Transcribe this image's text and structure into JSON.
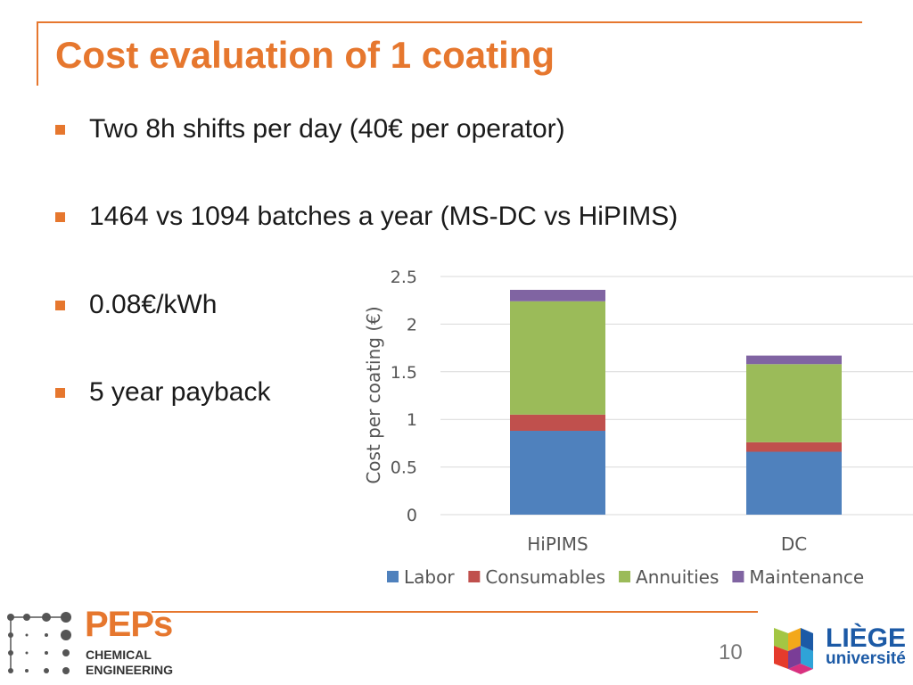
{
  "slide": {
    "title": "Cost evaluation of 1 coating",
    "bullets": [
      "Two 8h shifts per day (40€ per operator)",
      "1464 vs 1094 batches a year (MS-DC vs HiPIMS)",
      "0.08€/kWh",
      "5 year payback"
    ],
    "page_number": "10"
  },
  "footer": {
    "peps_name": "PEPs",
    "peps_line1": "CHEMICAL",
    "peps_line2": "ENGINEERING",
    "liege_name": "LIÈGE",
    "liege_sub": "université"
  },
  "colors": {
    "accent": "#e6772e",
    "labor": "#4f81bd",
    "consumables": "#c0504d",
    "annuities": "#9bbb59",
    "maintenance": "#8064a2",
    "liege_blue": "#1c5aa6"
  },
  "chart_data": {
    "type": "bar",
    "stacked": true,
    "categories": [
      "HiPIMS",
      "DC"
    ],
    "series": [
      {
        "name": "Labor",
        "values": [
          0.88,
          0.66
        ]
      },
      {
        "name": "Consumables",
        "values": [
          0.17,
          0.1
        ]
      },
      {
        "name": "Annuities",
        "values": [
          1.19,
          0.82
        ]
      },
      {
        "name": "Maintenance",
        "values": [
          0.12,
          0.09
        ]
      }
    ],
    "ylabel": "Cost per coating (€)",
    "ylim": [
      0,
      2.5
    ],
    "yticks": [
      "0",
      "0.5",
      "1",
      "1.5",
      "2",
      "2.5"
    ],
    "grid": true,
    "legend": "bottom"
  }
}
